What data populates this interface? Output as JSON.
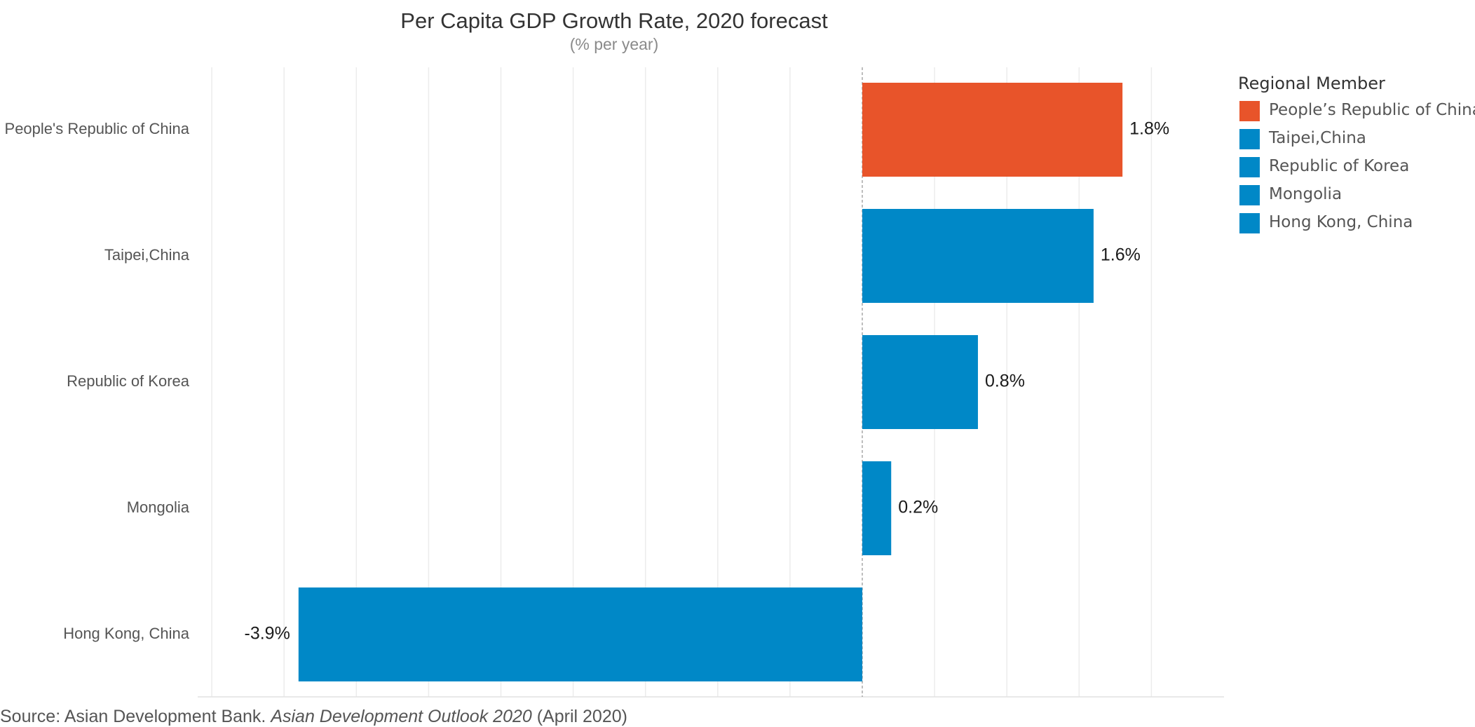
{
  "chart_data": {
    "type": "bar",
    "orientation": "horizontal",
    "title": "Per Capita GDP Growth Rate, 2020 forecast",
    "subtitle": "(% per year)",
    "categories": [
      "People's Republic of China",
      "Taipei,China",
      "Republic of Korea",
      "Mongolia",
      "Hong Kong, China"
    ],
    "values": [
      1.8,
      1.6,
      0.8,
      0.2,
      -3.9
    ],
    "data_labels": [
      "1.8%",
      "1.6%",
      "0.8%",
      "0.2%",
      "-3.9%"
    ],
    "bar_colors": [
      "#E8542A",
      "#0088C7",
      "#0088C7",
      "#0088C7",
      "#0088C7"
    ],
    "xlim": [
      -4.5,
      2.5
    ],
    "grid_step": 0.5,
    "grid": true,
    "zero_line": true,
    "legend_placement": "right",
    "legend_title": "Regional Member",
    "legend": [
      {
        "name": "People’s Republic of China",
        "color": "#E8542A"
      },
      {
        "name": "Taipei,China",
        "color": "#0088C7"
      },
      {
        "name": "Republic of Korea",
        "color": "#0088C7"
      },
      {
        "name": "Mongolia",
        "color": "#0088C7"
      },
      {
        "name": "Hong Kong, China",
        "color": "#0088C7"
      }
    ]
  },
  "source": {
    "prefix": "Source: Asian Development Bank. ",
    "publication": "Asian Development Outlook 2020",
    "suffix": " (April 2020)"
  }
}
